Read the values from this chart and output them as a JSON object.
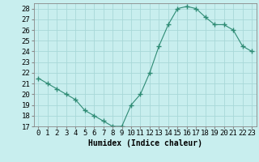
{
  "x": [
    0,
    1,
    2,
    3,
    4,
    5,
    6,
    7,
    8,
    9,
    10,
    11,
    12,
    13,
    14,
    15,
    16,
    17,
    18,
    19,
    20,
    21,
    22,
    23
  ],
  "y": [
    21.5,
    21.0,
    20.5,
    20.0,
    19.5,
    18.5,
    18.0,
    17.5,
    17.0,
    17.0,
    19.0,
    20.0,
    22.0,
    24.5,
    26.5,
    28.0,
    28.2,
    28.0,
    27.2,
    26.5,
    26.5,
    26.0,
    24.5,
    24.0
  ],
  "line_color": "#2e8b74",
  "marker": "+",
  "marker_size": 4,
  "bg_color": "#c8eeee",
  "grid_color": "#a8d8d8",
  "xlabel": "Humidex (Indice chaleur)",
  "xlabel_fontsize": 7,
  "tick_fontsize": 6.5,
  "xlim": [
    -0.5,
    23.5
  ],
  "ylim": [
    17,
    28.5
  ],
  "yticks": [
    17,
    18,
    19,
    20,
    21,
    22,
    23,
    24,
    25,
    26,
    27,
    28
  ],
  "xticks": [
    0,
    1,
    2,
    3,
    4,
    5,
    6,
    7,
    8,
    9,
    10,
    11,
    12,
    13,
    14,
    15,
    16,
    17,
    18,
    19,
    20,
    21,
    22,
    23
  ]
}
